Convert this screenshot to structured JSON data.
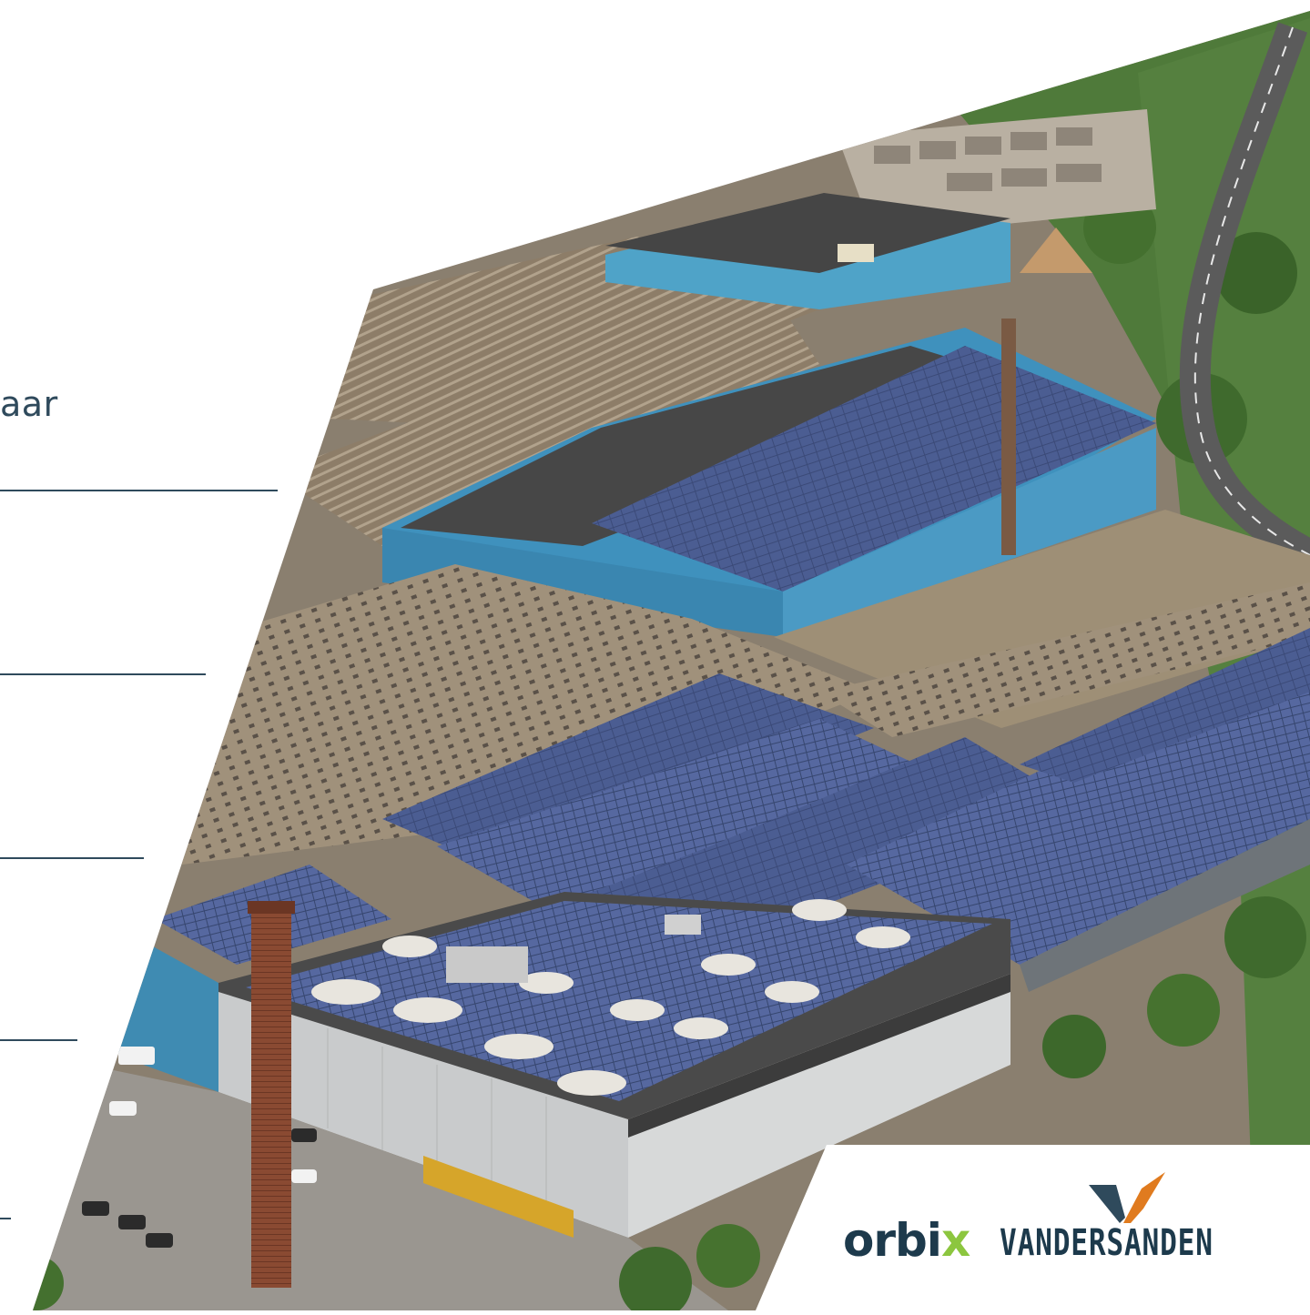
{
  "intro": {
    "text_fragment": "aar"
  },
  "logos": {
    "orbix": {
      "main": "orbi",
      "accent": "x",
      "accent_color": "#8cc63f",
      "color": "#1d3a4c"
    },
    "vandersanden": {
      "text": "VANDERSANDEN",
      "mark_colors": [
        "#2f4a5c",
        "#e07b1f"
      ]
    }
  },
  "photo": {
    "subject": "aerial-factory-with-solar-panels"
  }
}
